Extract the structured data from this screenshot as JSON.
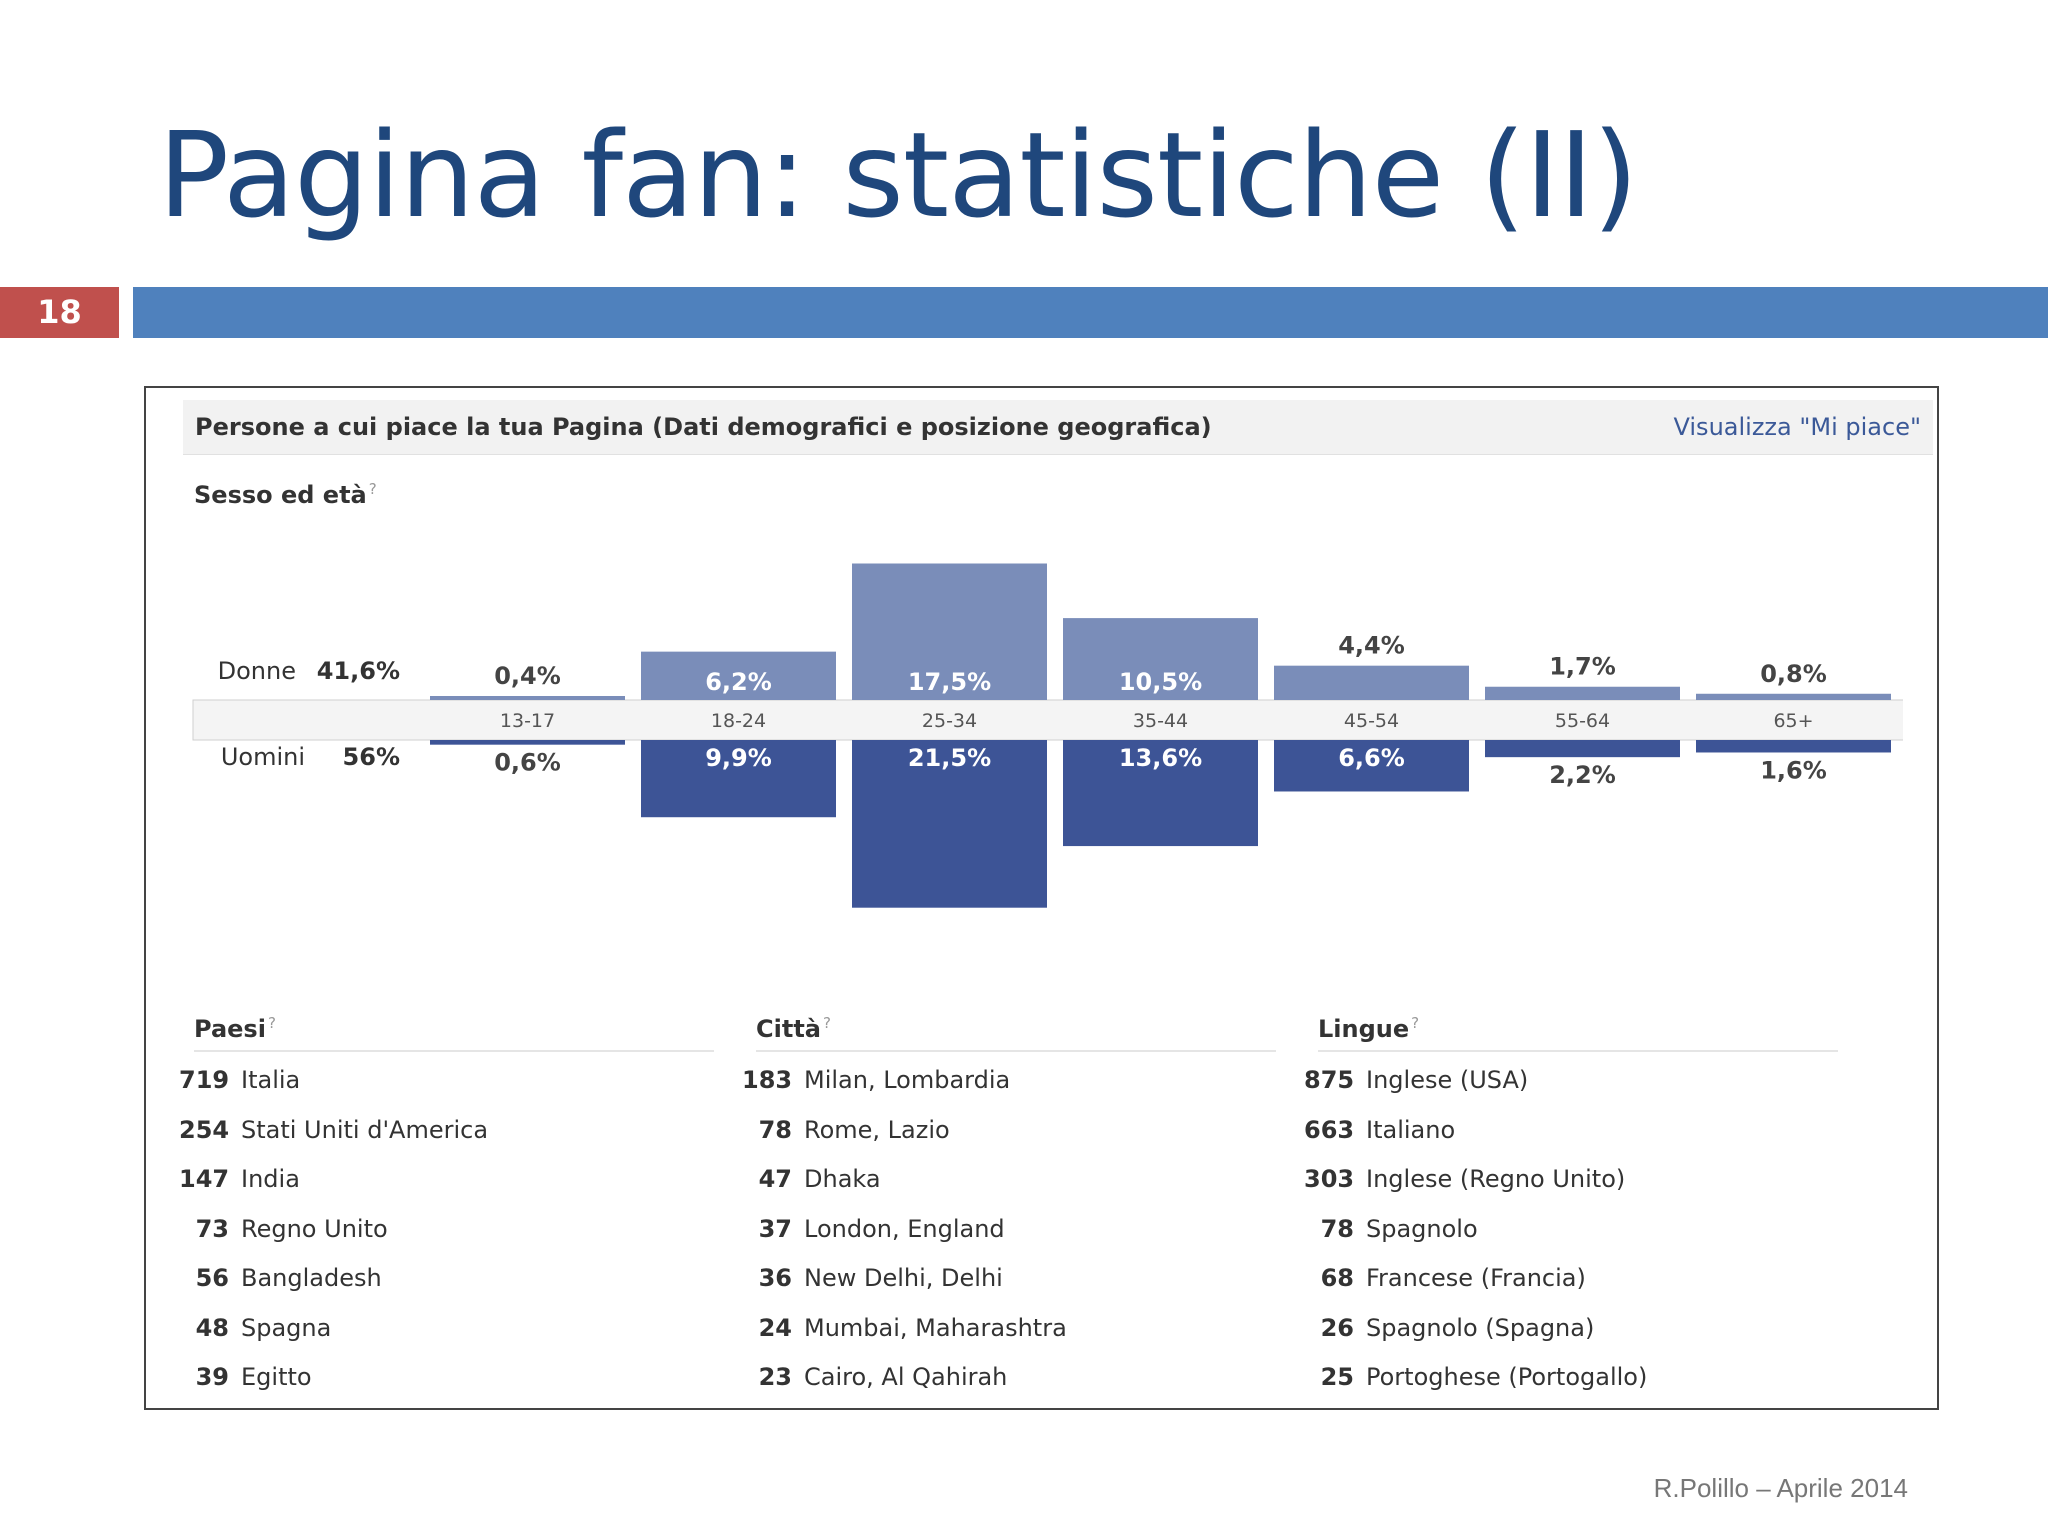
{
  "slide": {
    "title": "Pagina fan: statistiche (II)",
    "number": "18",
    "footer": "R.Polillo – Aprile 2014"
  },
  "panel": {
    "title": "Persone a cui piace la tua Pagina (Dati demografici e posizione geografica)",
    "view_link": "Visualizza \"Mi piace\"",
    "help_mark": "?",
    "gender_section": "Sesso ed età"
  },
  "chart_data": {
    "type": "bar",
    "categories": [
      "13-17",
      "18-24",
      "25-34",
      "35-44",
      "45-54",
      "55-64",
      "65+"
    ],
    "series": [
      {
        "name": "Donne",
        "total": "41,6%",
        "values": [
          0.4,
          6.2,
          17.5,
          10.5,
          4.4,
          1.7,
          0.8
        ],
        "labels": [
          "0,4%",
          "6,2%",
          "17,5%",
          "10,5%",
          "4,4%",
          "1,7%",
          "0,8%"
        ],
        "color": "#7a8db9"
      },
      {
        "name": "Uomini",
        "total": "56%",
        "values": [
          0.6,
          9.9,
          21.5,
          13.6,
          6.6,
          2.2,
          1.6
        ],
        "labels": [
          "0,6%",
          "9,9%",
          "21,5%",
          "13,6%",
          "6,6%",
          "2,2%",
          "1,6%"
        ],
        "color": "#3d5496"
      }
    ],
    "title": "",
    "xlabel": "",
    "ylabel": ""
  },
  "countries": {
    "heading": "Paesi",
    "items": [
      {
        "count": "719",
        "name": "Italia"
      },
      {
        "count": "254",
        "name": "Stati Uniti d'America"
      },
      {
        "count": "147",
        "name": "India"
      },
      {
        "count": "73",
        "name": "Regno Unito"
      },
      {
        "count": "56",
        "name": "Bangladesh"
      },
      {
        "count": "48",
        "name": "Spagna"
      },
      {
        "count": "39",
        "name": "Egitto"
      }
    ]
  },
  "cities": {
    "heading": "Città",
    "items": [
      {
        "count": "183",
        "name": "Milan, Lombardia"
      },
      {
        "count": "78",
        "name": "Rome, Lazio"
      },
      {
        "count": "47",
        "name": "Dhaka"
      },
      {
        "count": "37",
        "name": "London, England"
      },
      {
        "count": "36",
        "name": "New Delhi, Delhi"
      },
      {
        "count": "24",
        "name": "Mumbai, Maharashtra"
      },
      {
        "count": "23",
        "name": "Cairo, Al Qahirah"
      }
    ]
  },
  "languages": {
    "heading": "Lingue",
    "items": [
      {
        "count": "875",
        "name": "Inglese (USA)"
      },
      {
        "count": "663",
        "name": "Italiano"
      },
      {
        "count": "303",
        "name": "Inglese (Regno Unito)"
      },
      {
        "count": "78",
        "name": "Spagnolo"
      },
      {
        "count": "68",
        "name": "Francese (Francia)"
      },
      {
        "count": "26",
        "name": "Spagnolo (Spagna)"
      },
      {
        "count": "25",
        "name": "Portoghese (Portogallo)"
      }
    ]
  }
}
